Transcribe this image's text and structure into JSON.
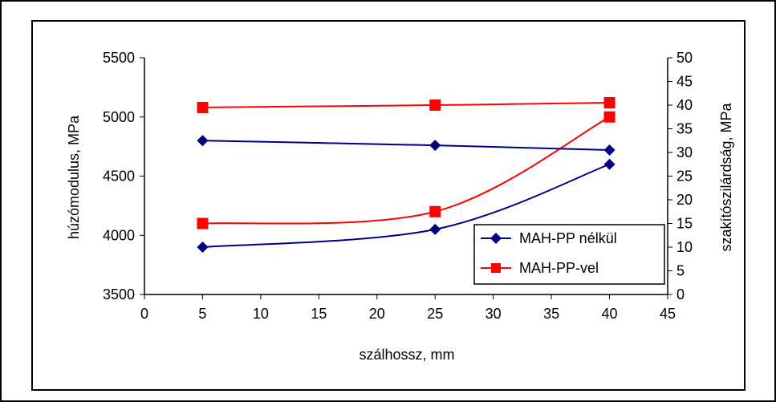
{
  "chart_data": {
    "type": "line",
    "title": "",
    "xlabel": "szálhossz, mm",
    "ylabel": "húzómodulus, MPa",
    "ylabel_right": "szakítószilárdság, MPa",
    "xlim": [
      0,
      45
    ],
    "ylim": [
      3500,
      5500
    ],
    "ylim_right": [
      0,
      50
    ],
    "xticks": [
      "0",
      "5",
      "10",
      "15",
      "20",
      "25",
      "30",
      "35",
      "40",
      "45"
    ],
    "yticks": [
      "3500",
      "4000",
      "4500",
      "5000",
      "5500"
    ],
    "yticks_right": [
      "0",
      "5",
      "10",
      "15",
      "20",
      "25",
      "30",
      "35",
      "40",
      "45",
      "50"
    ],
    "grid": false,
    "legend_position": "bottom-right",
    "x": [
      5,
      25,
      40
    ],
    "series": [
      {
        "name": "MAH-PP nélkül",
        "color": "#000080",
        "marker": "diamond",
        "axis": "left",
        "values": [
          3900,
          4050,
          4600
        ]
      },
      {
        "name": "MAH-PP-vel",
        "color": "#FF0000",
        "marker": "square",
        "axis": "left",
        "values": [
          4100,
          4200,
          5000
        ]
      },
      {
        "name": "MAH-PP nélkül",
        "color": "#000080",
        "marker": "diamond",
        "axis": "right",
        "values": [
          32.5,
          31.5,
          30.5
        ]
      },
      {
        "name": "MAH-PP-vel",
        "color": "#FF0000",
        "marker": "square",
        "axis": "right",
        "values": [
          39.5,
          40,
          40.5
        ]
      }
    ],
    "legend": [
      {
        "label": "MAH-PP nélkül",
        "color": "#000080",
        "marker": "diamond"
      },
      {
        "label": "MAH-PP-vel",
        "color": "#FF0000",
        "marker": "square"
      }
    ]
  }
}
